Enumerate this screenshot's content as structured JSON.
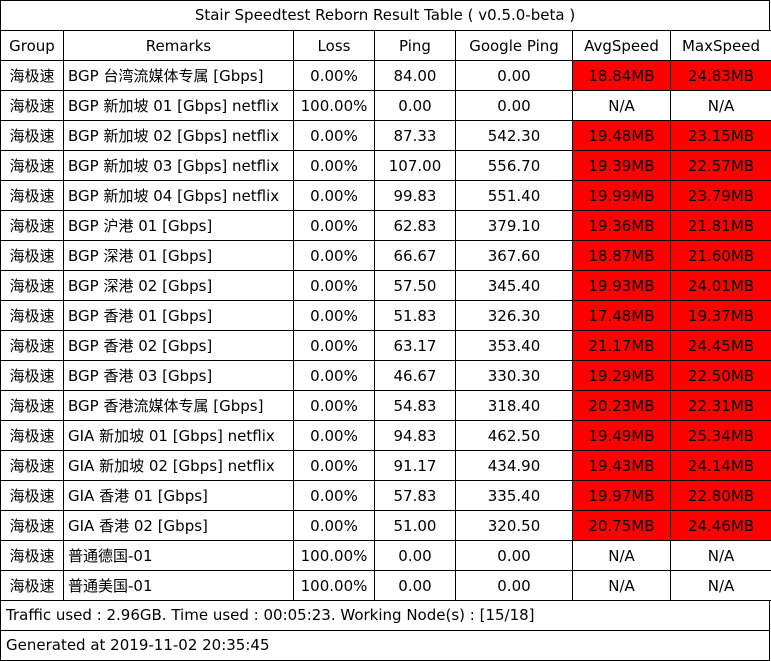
{
  "title": "Stair Speedtest Reborn Result Table ( v0.5.0-beta )",
  "headers": [
    "Group",
    "Remarks",
    "Loss",
    "Ping",
    "Google Ping",
    "AvgSpeed",
    "MaxSpeed"
  ],
  "rows": [
    {
      "group": "海极速",
      "remarks": "BGP 台湾流媒体专属 [Gbps]",
      "loss": "0.00%",
      "ping": "84.00",
      "google_ping": "0.00",
      "avg": "18.84MB",
      "max": "24.83MB",
      "highlight": true
    },
    {
      "group": "海极速",
      "remarks": "BGP 新加坡 01 [Gbps] netflix",
      "loss": "100.00%",
      "ping": "0.00",
      "google_ping": "0.00",
      "avg": "N/A",
      "max": "N/A",
      "highlight": false
    },
    {
      "group": "海极速",
      "remarks": "BGP 新加坡 02 [Gbps] netflix",
      "loss": "0.00%",
      "ping": "87.33",
      "google_ping": "542.30",
      "avg": "19.48MB",
      "max": "23.15MB",
      "highlight": true
    },
    {
      "group": "海极速",
      "remarks": "BGP 新加坡 03 [Gbps] netflix",
      "loss": "0.00%",
      "ping": "107.00",
      "google_ping": "556.70",
      "avg": "19.39MB",
      "max": "22.57MB",
      "highlight": true
    },
    {
      "group": "海极速",
      "remarks": "BGP 新加坡 04 [Gbps] netflix",
      "loss": "0.00%",
      "ping": "99.83",
      "google_ping": "551.40",
      "avg": "19.99MB",
      "max": "23.79MB",
      "highlight": true
    },
    {
      "group": "海极速",
      "remarks": "BGP 沪港 01 [Gbps]",
      "loss": "0.00%",
      "ping": "62.83",
      "google_ping": "379.10",
      "avg": "19.36MB",
      "max": "21.81MB",
      "highlight": true
    },
    {
      "group": "海极速",
      "remarks": "BGP 深港 01 [Gbps]",
      "loss": "0.00%",
      "ping": "66.67",
      "google_ping": "367.60",
      "avg": "18.87MB",
      "max": "21.60MB",
      "highlight": true
    },
    {
      "group": "海极速",
      "remarks": "BGP 深港 02 [Gbps]",
      "loss": "0.00%",
      "ping": "57.50",
      "google_ping": "345.40",
      "avg": "19.93MB",
      "max": "24.01MB",
      "highlight": true
    },
    {
      "group": "海极速",
      "remarks": "BGP 香港 01 [Gbps]",
      "loss": "0.00%",
      "ping": "51.83",
      "google_ping": "326.30",
      "avg": "17.48MB",
      "max": "19.37MB",
      "highlight": true
    },
    {
      "group": "海极速",
      "remarks": "BGP 香港 02  [Gbps]",
      "loss": "0.00%",
      "ping": "63.17",
      "google_ping": "353.40",
      "avg": "21.17MB",
      "max": "24.45MB",
      "highlight": true
    },
    {
      "group": "海极速",
      "remarks": "BGP 香港 03  [Gbps]",
      "loss": "0.00%",
      "ping": "46.67",
      "google_ping": "330.30",
      "avg": "19.29MB",
      "max": "22.50MB",
      "highlight": true
    },
    {
      "group": "海极速",
      "remarks": "BGP 香港流媒体专属 [Gbps]",
      "loss": "0.00%",
      "ping": "54.83",
      "google_ping": "318.40",
      "avg": "20.23MB",
      "max": "22.31MB",
      "highlight": true
    },
    {
      "group": "海极速",
      "remarks": "GIA 新加坡 01 [Gbps] netflix",
      "loss": "0.00%",
      "ping": "94.83",
      "google_ping": "462.50",
      "avg": "19.49MB",
      "max": "25.34MB",
      "highlight": true
    },
    {
      "group": "海极速",
      "remarks": "GIA 新加坡 02 [Gbps] netflix",
      "loss": "0.00%",
      "ping": "91.17",
      "google_ping": "434.90",
      "avg": "19.43MB",
      "max": "24.14MB",
      "highlight": true
    },
    {
      "group": "海极速",
      "remarks": "GIA 香港 01 [Gbps]",
      "loss": "0.00%",
      "ping": "57.83",
      "google_ping": "335.40",
      "avg": "19.97MB",
      "max": "22.80MB",
      "highlight": true
    },
    {
      "group": "海极速",
      "remarks": "GIA 香港 02  [Gbps]",
      "loss": "0.00%",
      "ping": "51.00",
      "google_ping": "320.50",
      "avg": "20.75MB",
      "max": "24.46MB",
      "highlight": true
    },
    {
      "group": "海极速",
      "remarks": "普通德国-01",
      "loss": "100.00%",
      "ping": "0.00",
      "google_ping": "0.00",
      "avg": "N/A",
      "max": "N/A",
      "highlight": false
    },
    {
      "group": "海极速",
      "remarks": "普通美国-01",
      "loss": "100.00%",
      "ping": "0.00",
      "google_ping": "0.00",
      "avg": "N/A",
      "max": "N/A",
      "highlight": false
    }
  ],
  "traffic_line": "Traffic used : 2.96GB. Time used : 00:05:23. Working Node(s) : [15/18]",
  "generated_line": "Generated at 2019-11-02 20:35:45",
  "colors": {
    "highlight": "#ff0000",
    "border": "#000000",
    "background": "#ffffff"
  }
}
